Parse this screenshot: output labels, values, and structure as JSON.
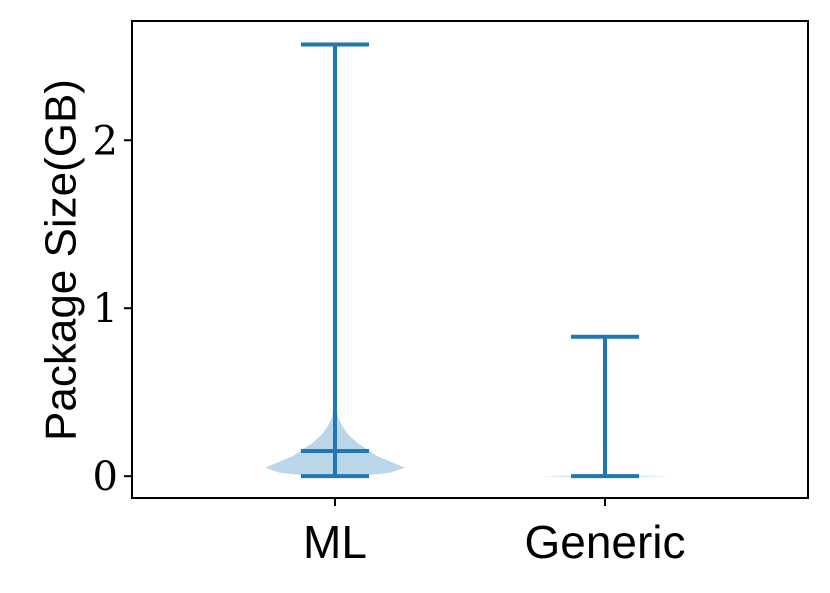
{
  "chart_data": {
    "type": "violin",
    "title": "",
    "xlabel": "",
    "ylabel": "Package Size(GB)",
    "categories": [
      "ML",
      "Generic"
    ],
    "ylim": [
      -0.13,
      2.71
    ],
    "yticks": [
      0,
      1,
      2
    ],
    "ytick_labels": [
      "0",
      "1",
      "2"
    ],
    "grid": false,
    "series": [
      {
        "category": "ML",
        "min": 0.0,
        "max": 2.57,
        "median": 0.15,
        "density_profile": [
          [
            0.0,
            0.22
          ],
          [
            0.02,
            0.55
          ],
          [
            0.05,
            0.7
          ],
          [
            0.08,
            0.58
          ],
          [
            0.12,
            0.42
          ],
          [
            0.16,
            0.32
          ],
          [
            0.2,
            0.22
          ],
          [
            0.25,
            0.13
          ],
          [
            0.3,
            0.07
          ],
          [
            0.35,
            0.03
          ],
          [
            0.45,
            0.01
          ],
          [
            2.57,
            0.0
          ]
        ]
      },
      {
        "category": "Generic",
        "min": 0.0,
        "max": 0.83,
        "median": 0.0,
        "density_profile": [
          [
            0.0,
            1.0
          ],
          [
            0.005,
            0.1
          ],
          [
            0.83,
            0.0
          ]
        ]
      }
    ],
    "colors": {
      "line": "#1f77b4",
      "fill": "#1f77b4",
      "fill_opacity": 0.3
    }
  }
}
